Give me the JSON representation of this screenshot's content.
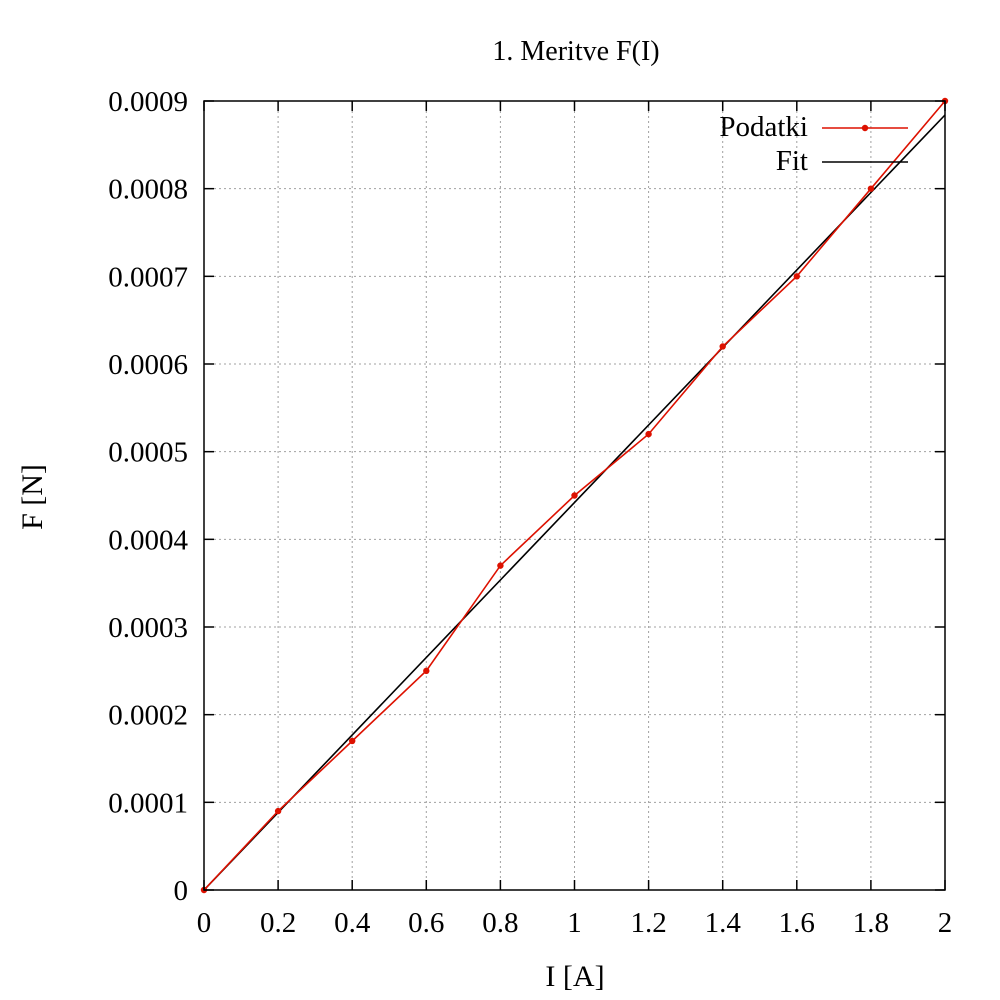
{
  "chart_data": {
    "type": "line",
    "title": "1. Meritve F(I)",
    "xlabel": "I [A]",
    "ylabel": "F [N]",
    "xlim": [
      0,
      2
    ],
    "ylim": [
      0,
      0.0009
    ],
    "x_ticks": [
      "0",
      "0.2",
      "0.4",
      "0.6",
      "0.8",
      "1",
      "1.2",
      "1.4",
      "1.6",
      "1.8",
      "2"
    ],
    "x_tick_values": [
      0,
      0.2,
      0.4,
      0.6,
      0.8,
      1.0,
      1.2,
      1.4,
      1.6,
      1.8,
      2.0
    ],
    "y_ticks": [
      "0",
      "0.0001",
      "0.0002",
      "0.0003",
      "0.0004",
      "0.0005",
      "0.0006",
      "0.0007",
      "0.0008",
      "0.0009"
    ],
    "y_tick_values": [
      0,
      0.0001,
      0.0002,
      0.0003,
      0.0004,
      0.0005,
      0.0006,
      0.0007,
      0.0008,
      0.0009
    ],
    "grid": true,
    "legend_position": "top-right",
    "series": [
      {
        "name": "Podatki",
        "style": "linespoints",
        "color": "#dd1100",
        "x": [
          0,
          0.2,
          0.4,
          0.6,
          0.8,
          1.0,
          1.2,
          1.4,
          1.6,
          1.8,
          2.0
        ],
        "y": [
          0,
          9e-05,
          0.00017,
          0.00025,
          0.00037,
          0.00045,
          0.00052,
          0.00062,
          0.0007,
          0.0008,
          0.0009
        ]
      },
      {
        "name": "Fit",
        "style": "line",
        "color": "#000000",
        "x": [
          0,
          2.0
        ],
        "y": [
          0,
          0.000884
        ]
      }
    ]
  }
}
